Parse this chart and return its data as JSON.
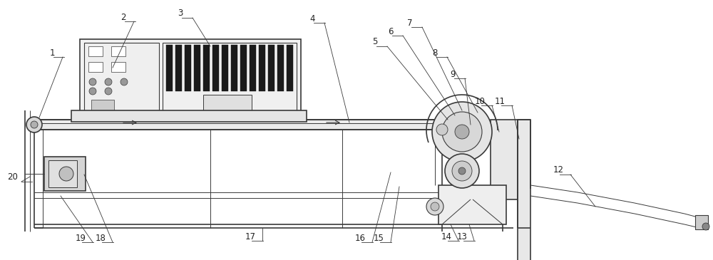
{
  "bg_color": "#ffffff",
  "line_color": "#3a3a3a",
  "fig_width": 10.0,
  "fig_height": 3.65,
  "lw_main": 1.2,
  "lw_thin": 0.7,
  "label_fs": 8.5,
  "label_color": "#222222"
}
